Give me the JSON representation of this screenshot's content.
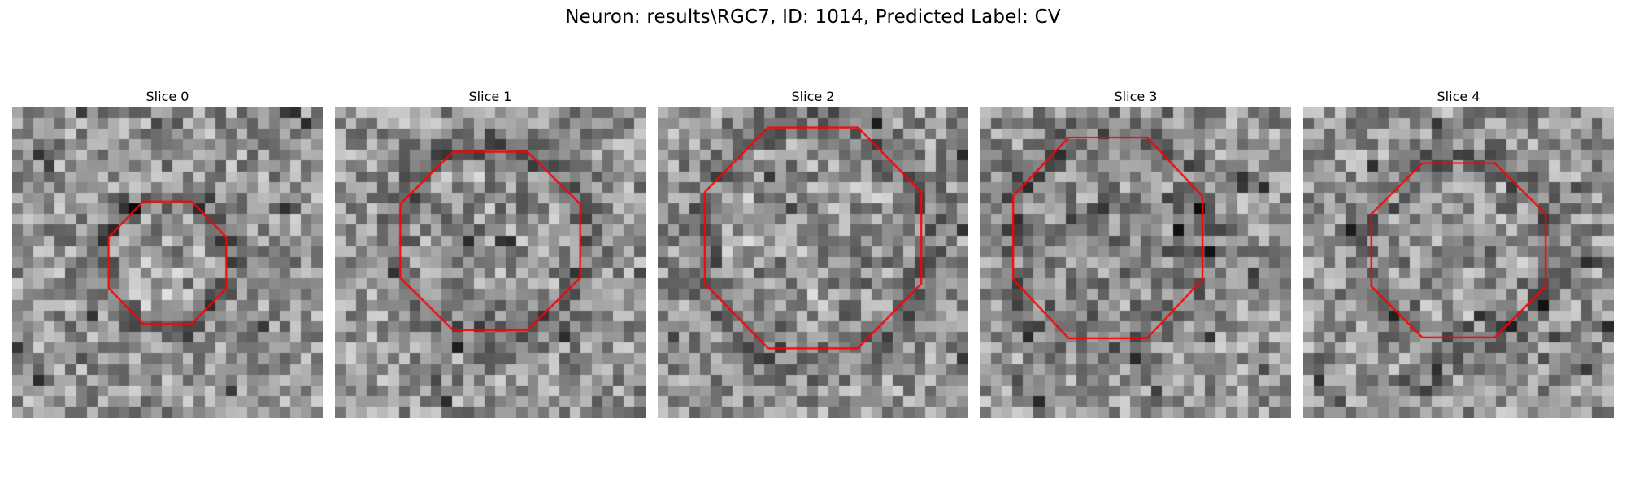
{
  "figure": {
    "title": "Neuron: results\\RGC7, ID: 1014, Predicted Label: CV"
  },
  "slices": [
    {
      "label": "Slice 0"
    },
    {
      "label": "Slice 1"
    },
    {
      "label": "Slice 2"
    },
    {
      "label": "Slice 3"
    },
    {
      "label": "Slice 4"
    }
  ],
  "colors": {
    "contour": "#ff0000",
    "background": "#ffffff"
  }
}
